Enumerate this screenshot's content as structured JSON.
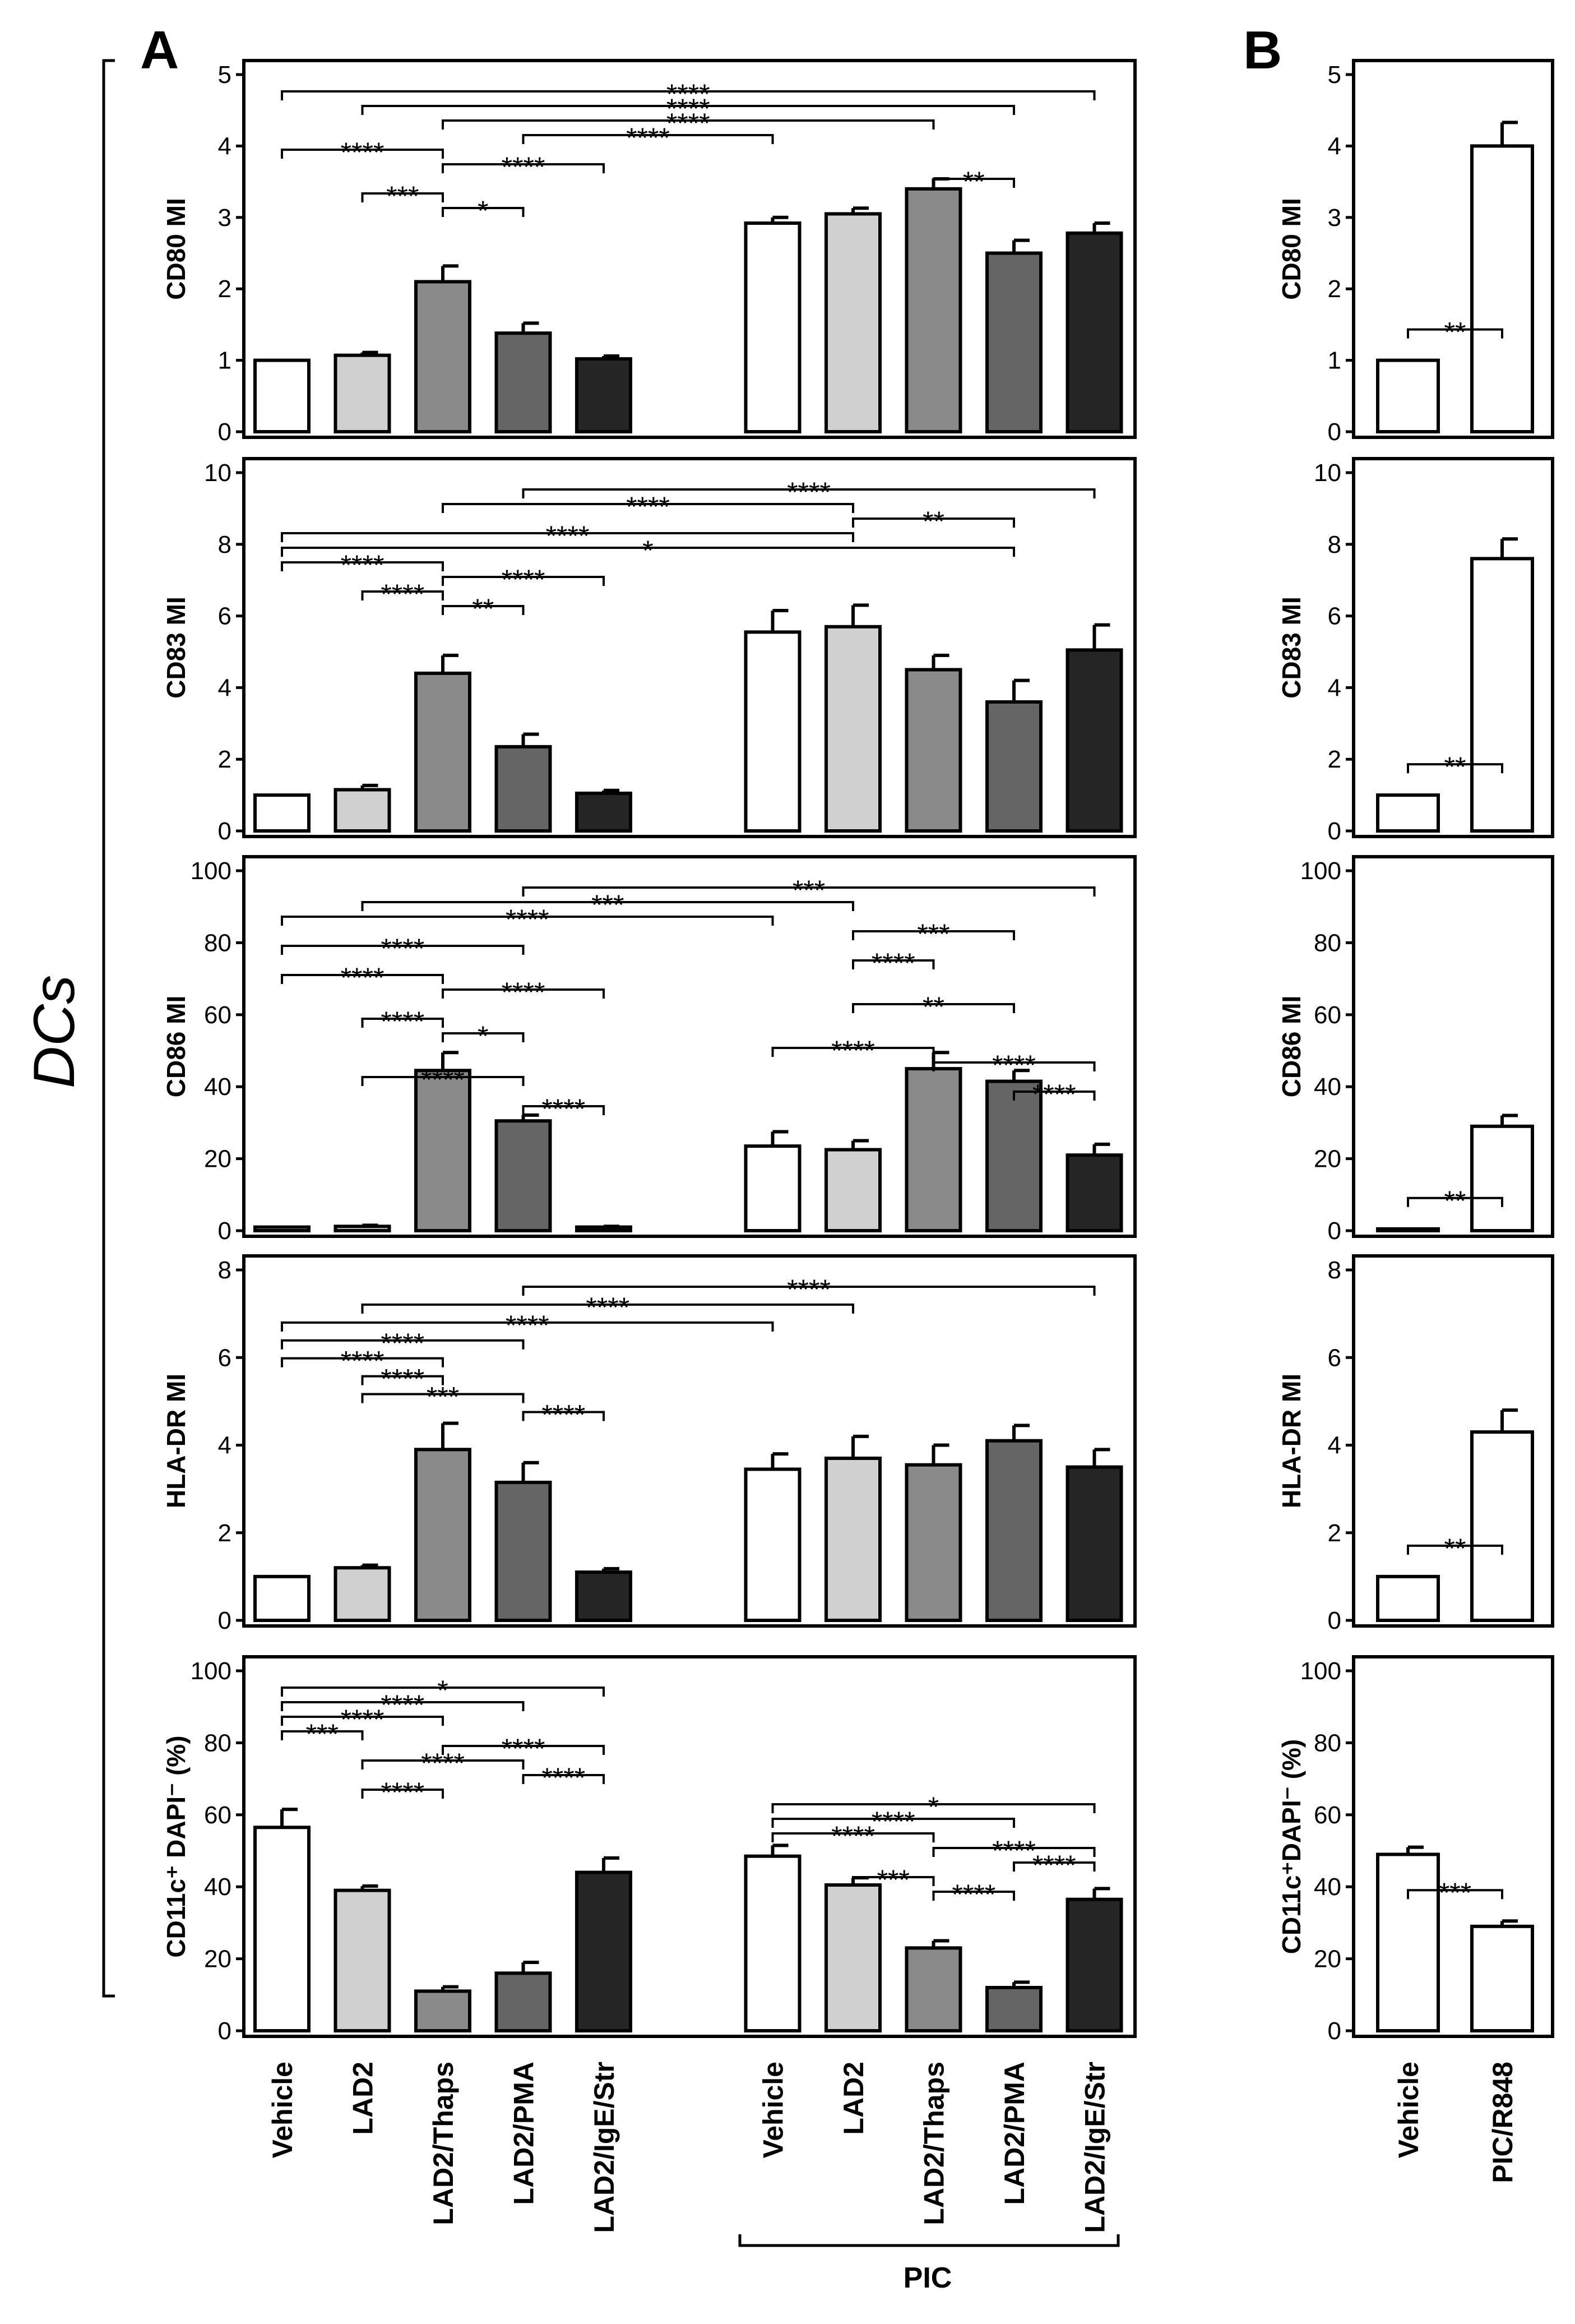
{
  "figure": {
    "panel_labels": [
      "A",
      "B"
    ],
    "side_label": "DCs",
    "group_label": "PIC"
  },
  "colors": {
    "Vehicle": "#ffffff",
    "LAD2": "#d0d0d0",
    "LAD2/Thaps": "#8a8a8a",
    "LAD2/PMA": "#656565",
    "LAD2/IgE/Str": "#252525",
    "PIC/R848": "#ffffff"
  },
  "chart_data": [
    {
      "type": "bar",
      "panel": "A",
      "ylabel": "CD80 MI",
      "ylim": [
        0,
        5
      ],
      "yticks": [
        0,
        1,
        2,
        3,
        4,
        5
      ],
      "categories": [
        "Vehicle",
        "LAD2",
        "LAD2/Thaps",
        "LAD2/PMA",
        "LAD2/IgE/Str",
        "Vehicle",
        "LAD2",
        "LAD2/Thaps",
        "LAD2/PMA",
        "LAD2/IgE/Str"
      ],
      "values": [
        1.0,
        1.07,
        2.1,
        1.38,
        1.02,
        2.92,
        3.05,
        3.4,
        2.5,
        2.78
      ],
      "errors": [
        0,
        0.04,
        0.22,
        0.14,
        0.04,
        0.08,
        0.08,
        0.14,
        0.18,
        0.14
      ],
      "significance": [
        {
          "from": 1,
          "to": 10,
          "label": "****"
        },
        {
          "from": 2,
          "to": 9,
          "label": "****"
        },
        {
          "from": 3,
          "to": 8,
          "label": "****"
        },
        {
          "from": 4,
          "to": 6,
          "label": "****"
        },
        {
          "from": 1,
          "to": 3,
          "label": "****"
        },
        {
          "from": 3,
          "to": 5,
          "label": "****"
        },
        {
          "from": 8,
          "to": 9,
          "label": "**"
        },
        {
          "from": 2,
          "to": 3,
          "label": "***"
        },
        {
          "from": 3,
          "to": 4,
          "label": "*"
        }
      ]
    },
    {
      "type": "bar",
      "panel": "A",
      "ylabel": "CD83 MI",
      "ylim": [
        0,
        10
      ],
      "yticks": [
        0,
        2,
        4,
        6,
        8,
        10
      ],
      "categories": [
        "Vehicle",
        "LAD2",
        "LAD2/Thaps",
        "LAD2/PMA",
        "LAD2/IgE/Str",
        "Vehicle",
        "LAD2",
        "LAD2/Thaps",
        "LAD2/PMA",
        "LAD2/IgE/Str"
      ],
      "values": [
        1.0,
        1.15,
        4.4,
        2.35,
        1.05,
        5.55,
        5.7,
        4.5,
        3.6,
        5.05
      ],
      "errors": [
        0,
        0.12,
        0.5,
        0.35,
        0.08,
        0.6,
        0.6,
        0.4,
        0.6,
        0.7
      ],
      "significance": [
        {
          "from": 4,
          "to": 10,
          "label": "****"
        },
        {
          "from": 3,
          "to": 7,
          "label": "****"
        },
        {
          "from": 7,
          "to": 9,
          "label": "**"
        },
        {
          "from": 1,
          "to": 7,
          "label": "****"
        },
        {
          "from": 1,
          "to": 9,
          "label": "*"
        },
        {
          "from": 1,
          "to": 3,
          "label": "****"
        },
        {
          "from": 3,
          "to": 5,
          "label": "****"
        },
        {
          "from": 2,
          "to": 3,
          "label": "****"
        },
        {
          "from": 3,
          "to": 4,
          "label": "**"
        }
      ]
    },
    {
      "type": "bar",
      "panel": "A",
      "ylabel": "CD86 MI",
      "ylim": [
        0,
        100
      ],
      "yticks": [
        0,
        20,
        40,
        60,
        80,
        100
      ],
      "categories": [
        "Vehicle",
        "LAD2",
        "LAD2/Thaps",
        "LAD2/PMA",
        "LAD2/IgE/Str",
        "Vehicle",
        "LAD2",
        "LAD2/Thaps",
        "LAD2/PMA",
        "LAD2/IgE/Str"
      ],
      "values": [
        1.0,
        1.2,
        44.5,
        30.5,
        1.0,
        23.5,
        22.5,
        45.0,
        41.5,
        21.0
      ],
      "errors": [
        0,
        0.3,
        5.0,
        1.6,
        0.2,
        4.0,
        2.5,
        4.5,
        3.0,
        3.0
      ],
      "significance": [
        {
          "from": 4,
          "to": 10,
          "label": "***"
        },
        {
          "from": 2,
          "to": 7,
          "label": "***"
        },
        {
          "from": 1,
          "to": 6,
          "label": "****"
        },
        {
          "from": 7,
          "to": 9,
          "label": "***"
        },
        {
          "from": 1,
          "to": 4,
          "label": "****"
        },
        {
          "from": 7,
          "to": 8,
          "label": "****"
        },
        {
          "from": 1,
          "to": 3,
          "label": "****"
        },
        {
          "from": 3,
          "to": 5,
          "label": "****"
        },
        {
          "from": 7,
          "to": 9,
          "label": "**"
        },
        {
          "from": 2,
          "to": 3,
          "label": "****"
        },
        {
          "from": 3,
          "to": 4,
          "label": "*"
        },
        {
          "from": 6,
          "to": 8,
          "label": "****"
        },
        {
          "from": 8,
          "to": 10,
          "label": "****"
        },
        {
          "from": 2,
          "to": 4,
          "label": "****"
        },
        {
          "from": 9,
          "to": 10,
          "label": "****"
        },
        {
          "from": 4,
          "to": 5,
          "label": "****"
        }
      ]
    },
    {
      "type": "bar",
      "panel": "A",
      "ylabel": "HLA-DR MI",
      "ylim": [
        0,
        8
      ],
      "yticks": [
        0,
        2,
        4,
        6,
        8
      ],
      "categories": [
        "Vehicle",
        "LAD2",
        "LAD2/Thaps",
        "LAD2/PMA",
        "LAD2/IgE/Str",
        "Vehicle",
        "LAD2",
        "LAD2/Thaps",
        "LAD2/PMA",
        "LAD2/IgE/Str"
      ],
      "values": [
        1.0,
        1.2,
        3.9,
        3.15,
        1.1,
        3.45,
        3.7,
        3.55,
        4.1,
        3.5
      ],
      "errors": [
        0,
        0.06,
        0.6,
        0.45,
        0.08,
        0.35,
        0.5,
        0.45,
        0.35,
        0.4
      ],
      "significance": [
        {
          "from": 4,
          "to": 10,
          "label": "****"
        },
        {
          "from": 2,
          "to": 7,
          "label": "****"
        },
        {
          "from": 1,
          "to": 6,
          "label": "****"
        },
        {
          "from": 1,
          "to": 4,
          "label": "****"
        },
        {
          "from": 1,
          "to": 3,
          "label": "****"
        },
        {
          "from": 2,
          "to": 3,
          "label": "****"
        },
        {
          "from": 2,
          "to": 4,
          "label": "***"
        },
        {
          "from": 4,
          "to": 5,
          "label": "****"
        }
      ]
    },
    {
      "type": "bar",
      "panel": "A",
      "ylabel": "CD11c⁺ DAPI⁻ (%)",
      "ylim": [
        0,
        100
      ],
      "yticks": [
        0,
        20,
        40,
        60,
        80,
        100
      ],
      "categories": [
        "Vehicle",
        "LAD2",
        "LAD2/Thaps",
        "LAD2/PMA",
        "LAD2/IgE/Str",
        "Vehicle",
        "LAD2",
        "LAD2/Thaps",
        "LAD2/PMA",
        "LAD2/IgE/Str"
      ],
      "values": [
        56.5,
        39.0,
        11.0,
        16.0,
        44.0,
        48.5,
        40.5,
        23.0,
        12.0,
        36.5
      ],
      "errors": [
        5.0,
        1.2,
        1.2,
        3.0,
        4.0,
        3.0,
        2.0,
        2.0,
        1.5,
        3.0
      ],
      "significance": [
        {
          "from": 1,
          "to": 5,
          "label": "*"
        },
        {
          "from": 1,
          "to": 4,
          "label": "****"
        },
        {
          "from": 1,
          "to": 3,
          "label": "****"
        },
        {
          "from": 1,
          "to": 2,
          "label": "***"
        },
        {
          "from": 3,
          "to": 5,
          "label": "****"
        },
        {
          "from": 2,
          "to": 4,
          "label": "****"
        },
        {
          "from": 4,
          "to": 5,
          "label": "****"
        },
        {
          "from": 2,
          "to": 3,
          "label": "****"
        },
        {
          "from": 6,
          "to": 10,
          "label": "*"
        },
        {
          "from": 6,
          "to": 9,
          "label": "****"
        },
        {
          "from": 6,
          "to": 8,
          "label": "****"
        },
        {
          "from": 8,
          "to": 10,
          "label": "****"
        },
        {
          "from": 9,
          "to": 10,
          "label": "****"
        },
        {
          "from": 7,
          "to": 8,
          "label": "***"
        },
        {
          "from": 8,
          "to": 9,
          "label": "****"
        }
      ]
    },
    {
      "type": "bar",
      "panel": "B",
      "ylabel": "CD80 MI",
      "ylim": [
        0,
        5
      ],
      "yticks": [
        0,
        1,
        2,
        3,
        4,
        5
      ],
      "categories": [
        "Vehicle",
        "PIC/R848"
      ],
      "values": [
        1.0,
        4.0
      ],
      "errors": [
        0,
        0.33
      ],
      "significance": [
        {
          "from": 1,
          "to": 2,
          "label": "**"
        }
      ]
    },
    {
      "type": "bar",
      "panel": "B",
      "ylabel": "CD83 MI",
      "ylim": [
        0,
        10
      ],
      "yticks": [
        0,
        2,
        4,
        6,
        8,
        10
      ],
      "categories": [
        "Vehicle",
        "PIC/R848"
      ],
      "values": [
        1.0,
        7.6
      ],
      "errors": [
        0,
        0.55
      ],
      "significance": [
        {
          "from": 1,
          "to": 2,
          "label": "**"
        }
      ]
    },
    {
      "type": "bar",
      "panel": "B",
      "ylabel": "CD86 MI",
      "ylim": [
        0,
        100
      ],
      "yticks": [
        0,
        20,
        40,
        60,
        80,
        100
      ],
      "categories": [
        "Vehicle",
        "PIC/R848"
      ],
      "values": [
        0.5,
        29.0
      ],
      "errors": [
        0,
        3.0
      ],
      "significance": [
        {
          "from": 1,
          "to": 2,
          "label": "**"
        }
      ]
    },
    {
      "type": "bar",
      "panel": "B",
      "ylabel": "HLA-DR MI",
      "ylim": [
        0,
        8
      ],
      "yticks": [
        0,
        2,
        4,
        6,
        8
      ],
      "categories": [
        "Vehicle",
        "PIC/R848"
      ],
      "values": [
        1.0,
        4.3
      ],
      "errors": [
        0,
        0.5
      ],
      "significance": [
        {
          "from": 1,
          "to": 2,
          "label": "**"
        }
      ]
    },
    {
      "type": "bar",
      "panel": "B",
      "ylabel": "CD11c⁺DAPI⁻ (%)",
      "ylim": [
        0,
        100
      ],
      "yticks": [
        0,
        20,
        40,
        60,
        80,
        100
      ],
      "categories": [
        "Vehicle",
        "PIC/R848"
      ],
      "values": [
        49.0,
        29.0
      ],
      "errors": [
        2.0,
        1.5
      ],
      "significance": [
        {
          "from": 1,
          "to": 2,
          "label": "***"
        }
      ]
    }
  ]
}
